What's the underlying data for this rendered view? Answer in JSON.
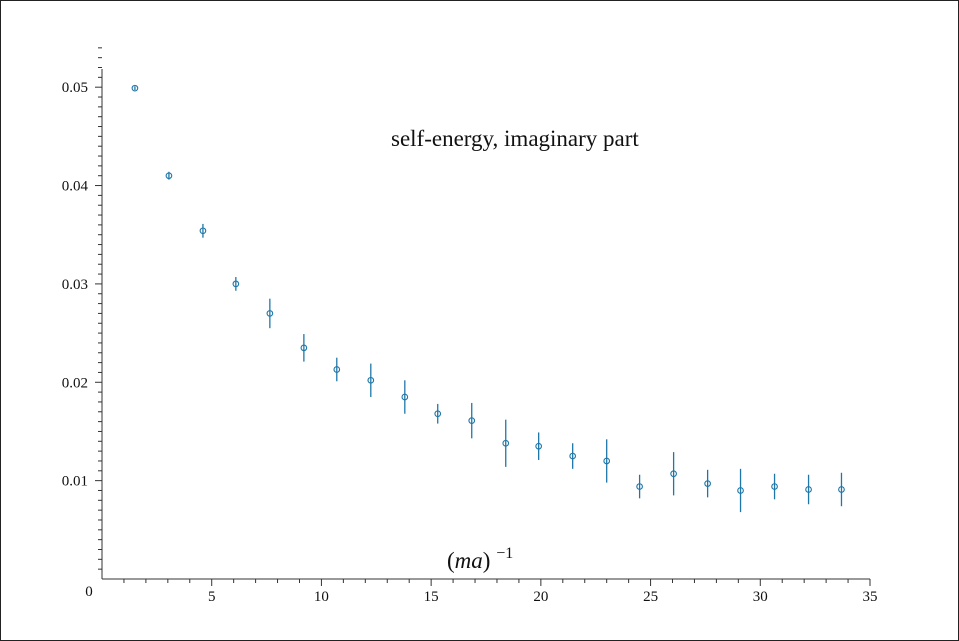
{
  "chart_data": {
    "type": "scatter",
    "title": "self-energy, imaginary part",
    "xlabel_base": "(ma)",
    "xlabel_exp": "−1",
    "ylabel": "",
    "xlim": [
      0,
      35
    ],
    "ylim": [
      0,
      0.055
    ],
    "x_ticks": [
      5,
      10,
      15,
      20,
      25,
      30,
      35
    ],
    "x_tick_labels": [
      "5",
      "10",
      "15",
      "20",
      "25",
      "30",
      "35"
    ],
    "y_ticks": [
      0,
      0.01,
      0.02,
      0.03,
      0.04,
      0.05
    ],
    "y_tick_labels": [
      "0",
      "0.01",
      "0.02",
      "0.03",
      "0.04",
      "0.05"
    ],
    "grid": false,
    "legend": "none",
    "series": [
      {
        "marker": "open-circle",
        "color": "#1f77a8",
        "points": [
          {
            "x": 1.5,
            "y": 0.0499,
            "err": 0.0002
          },
          {
            "x": 3.05,
            "y": 0.041,
            "err": 0.0004
          },
          {
            "x": 4.6,
            "y": 0.0354,
            "err": 0.0007
          },
          {
            "x": 6.1,
            "y": 0.03,
            "err": 0.0007
          },
          {
            "x": 7.65,
            "y": 0.027,
            "err": 0.0015
          },
          {
            "x": 9.2,
            "y": 0.0235,
            "err": 0.0014
          },
          {
            "x": 10.7,
            "y": 0.0213,
            "err": 0.0012
          },
          {
            "x": 12.25,
            "y": 0.0202,
            "err": 0.0017
          },
          {
            "x": 13.8,
            "y": 0.0185,
            "err": 0.0017
          },
          {
            "x": 15.3,
            "y": 0.0168,
            "err": 0.001
          },
          {
            "x": 16.85,
            "y": 0.0161,
            "err": 0.0018
          },
          {
            "x": 18.4,
            "y": 0.0138,
            "err": 0.0024
          },
          {
            "x": 19.9,
            "y": 0.0135,
            "err": 0.0014
          },
          {
            "x": 21.45,
            "y": 0.0125,
            "err": 0.0013
          },
          {
            "x": 23.0,
            "y": 0.012,
            "err": 0.0022
          },
          {
            "x": 24.5,
            "y": 0.0094,
            "err": 0.0012
          },
          {
            "x": 26.05,
            "y": 0.0107,
            "err": 0.0022
          },
          {
            "x": 27.6,
            "y": 0.0097,
            "err": 0.0014
          },
          {
            "x": 29.1,
            "y": 0.009,
            "err": 0.0022
          },
          {
            "x": 30.65,
            "y": 0.0094,
            "err": 0.0013
          },
          {
            "x": 32.2,
            "y": 0.0091,
            "err": 0.0015
          },
          {
            "x": 33.7,
            "y": 0.0091,
            "err": 0.0017
          }
        ]
      }
    ]
  }
}
